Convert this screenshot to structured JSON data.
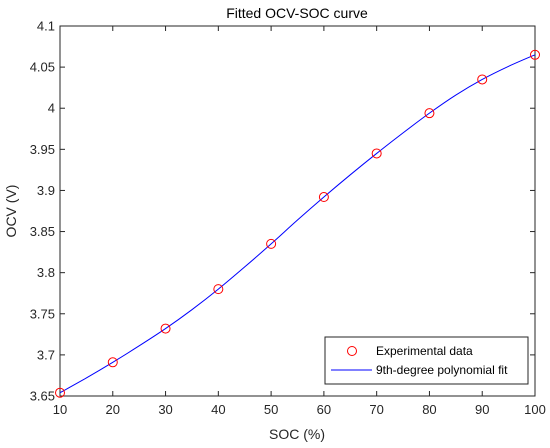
{
  "chart_data": {
    "type": "line",
    "title": "Fitted OCV-SOC curve",
    "xlabel": "SOC (%)",
    "ylabel": "OCV (V)",
    "xlim": [
      10,
      100
    ],
    "ylim": [
      3.65,
      4.1
    ],
    "xticks": [
      10,
      20,
      30,
      40,
      50,
      60,
      70,
      80,
      90,
      100
    ],
    "yticks": [
      3.65,
      3.7,
      3.75,
      3.8,
      3.85,
      3.9,
      3.95,
      4,
      4.05,
      4.1
    ],
    "grid": false,
    "legend_position": "bottom-right",
    "series": [
      {
        "name": "Experimental data",
        "kind": "markers",
        "marker": "circle",
        "color": "#ff0000",
        "x": [
          10,
          20,
          30,
          40,
          50,
          60,
          70,
          80,
          90,
          100
        ],
        "y": [
          3.654,
          3.691,
          3.732,
          3.78,
          3.835,
          3.892,
          3.945,
          3.994,
          4.035,
          4.065
        ]
      },
      {
        "name": "9th-degree polynomial fit",
        "kind": "line",
        "color": "#0000ff",
        "x": [
          10,
          15,
          20,
          25,
          30,
          35,
          40,
          45,
          50,
          55,
          60,
          65,
          70,
          75,
          80,
          85,
          90,
          95,
          100
        ],
        "y": [
          3.654,
          3.672,
          3.691,
          3.711,
          3.732,
          3.755,
          3.78,
          3.807,
          3.835,
          3.864,
          3.892,
          3.919,
          3.945,
          3.97,
          3.994,
          4.016,
          4.035,
          4.051,
          4.065
        ]
      }
    ]
  }
}
